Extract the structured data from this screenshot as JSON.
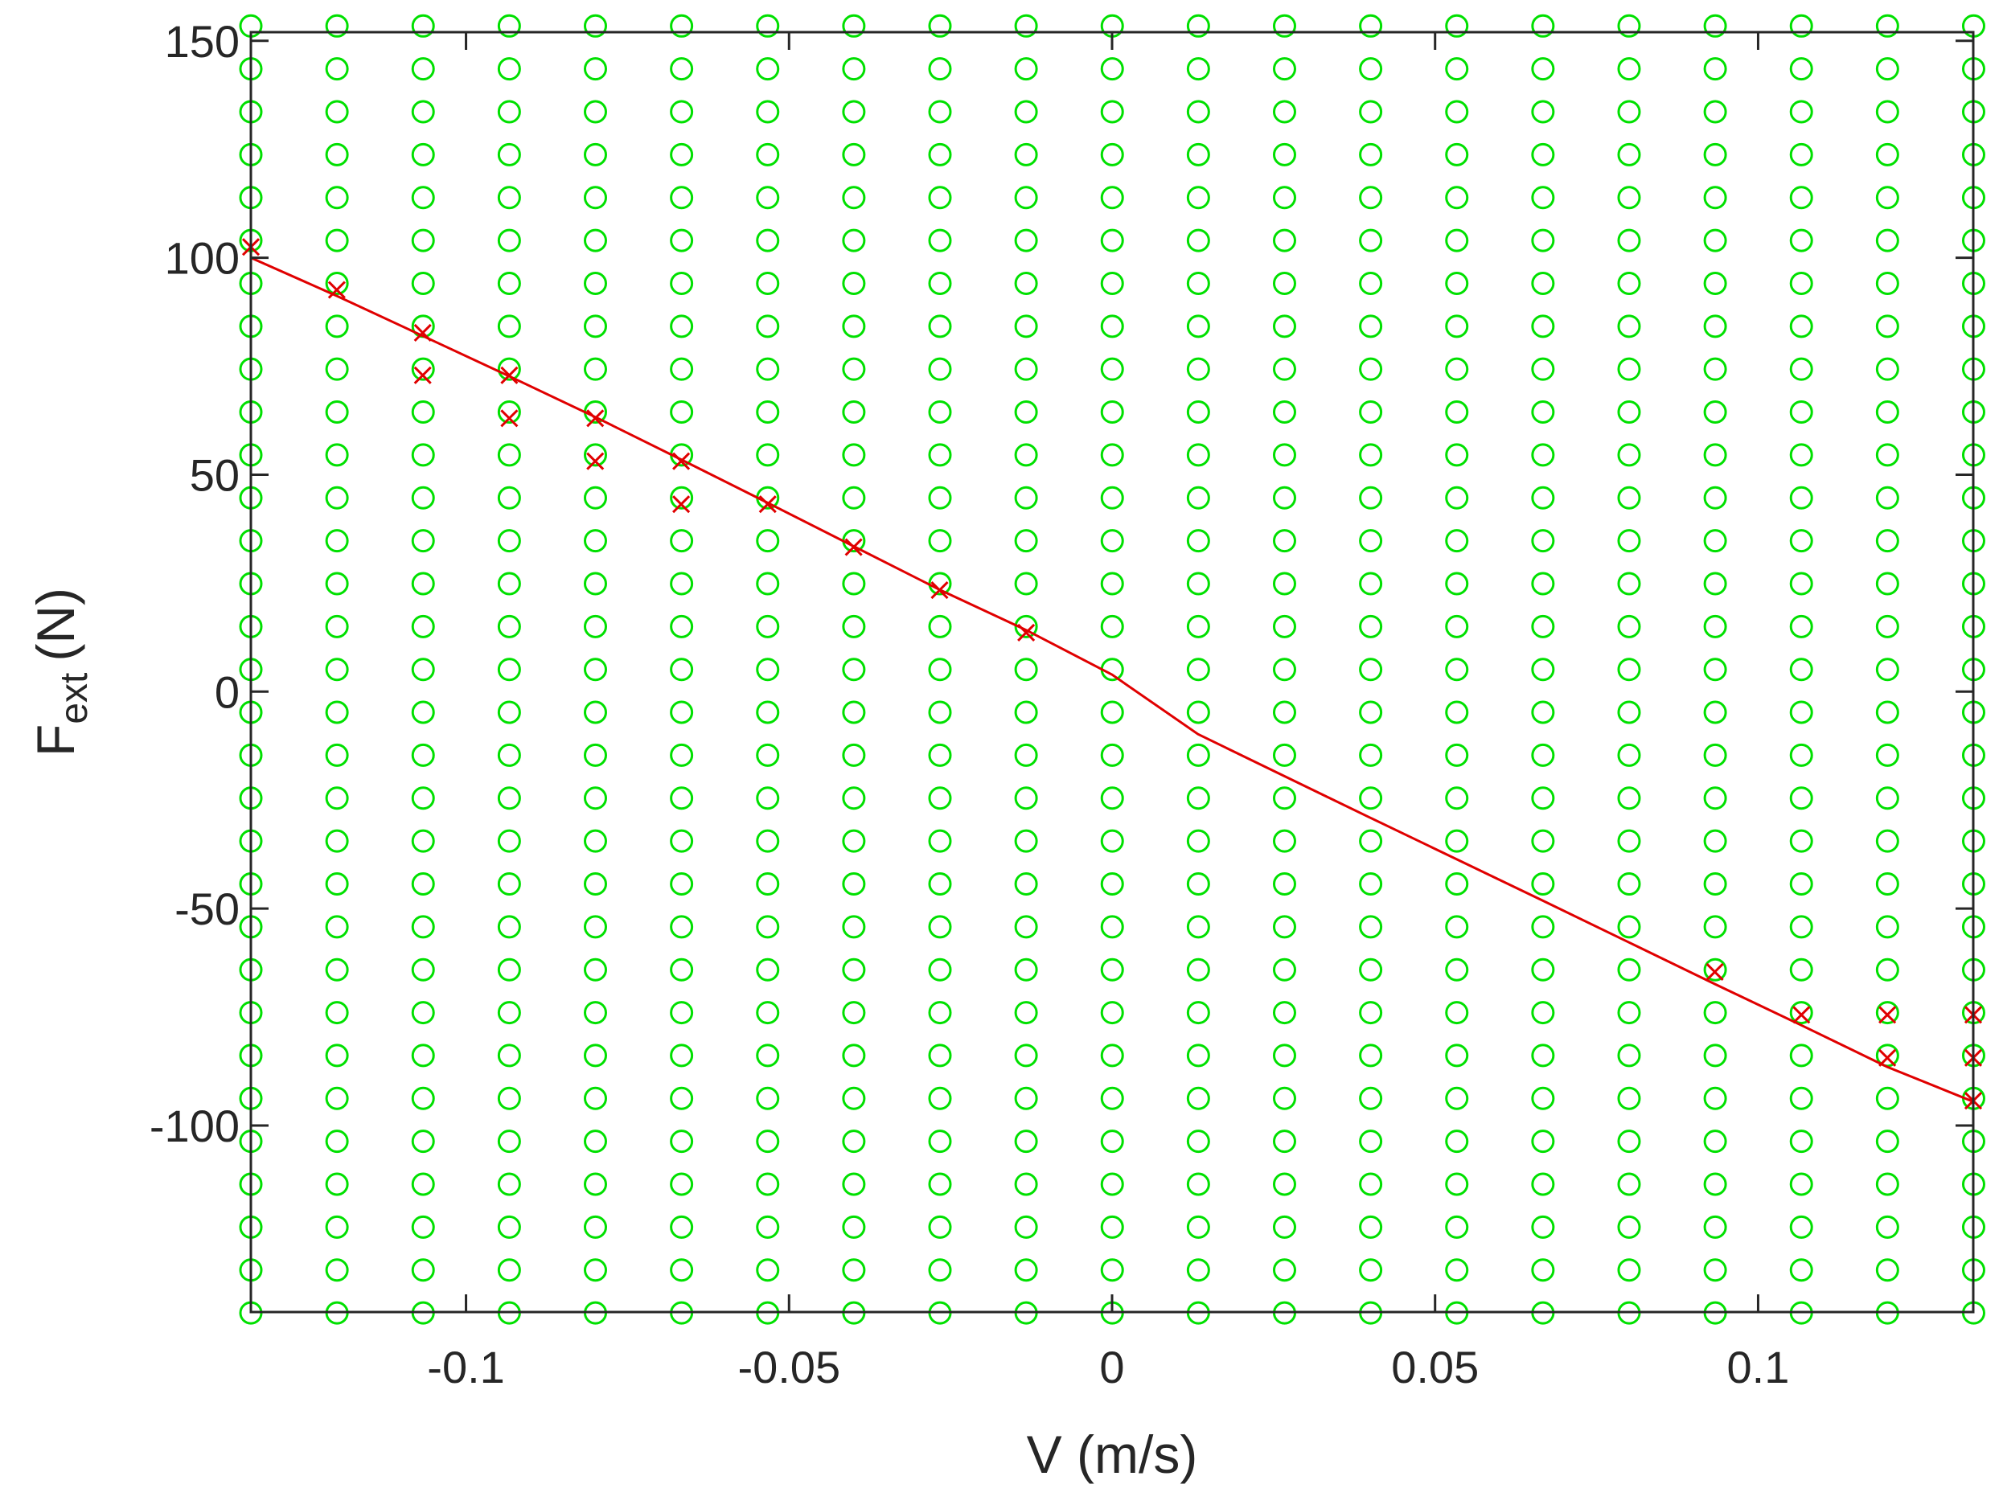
{
  "chart_data": {
    "type": "scatter",
    "title": "",
    "xlabel": "V (m/s)",
    "ylabel": {
      "main": "F",
      "subscript": "ext",
      "unit": "(N)"
    },
    "xlim": [
      -0.1333,
      0.1333
    ],
    "ylim": [
      -143,
      152
    ],
    "x_ticks": [
      -0.1,
      -0.05,
      0,
      0.05,
      0.1
    ],
    "x_tick_labels": [
      "-0.1",
      "-0.05",
      "0",
      "0.05",
      "0.1"
    ],
    "y_ticks": [
      -100,
      -50,
      0,
      50,
      100,
      150
    ],
    "y_tick_labels": [
      "-100",
      "-50",
      "0",
      "50",
      "100",
      "150"
    ],
    "grid": false,
    "colors": {
      "circles": "#00e000",
      "crosses": "#e00000",
      "line": "#e00000",
      "axes": "#262626"
    },
    "series": [
      {
        "marker": "circle",
        "grid_points": {
          "x_start": -0.1333,
          "x_step": 0.013333,
          "x_count": 21,
          "y_start": -143.2,
          "y_step": 9.8875,
          "y_count": 31
        }
      },
      {
        "marker": "cross",
        "points": [
          [
            -0.1333,
            102.5
          ],
          [
            -0.12,
            92.6
          ],
          [
            -0.1067,
            82.7
          ],
          [
            -0.1067,
            72.9
          ],
          [
            -0.0933,
            72.9
          ],
          [
            -0.0933,
            63.0
          ],
          [
            -0.08,
            63.0
          ],
          [
            -0.08,
            53.1
          ],
          [
            -0.0667,
            53.1
          ],
          [
            -0.0667,
            43.2
          ],
          [
            -0.0533,
            43.2
          ],
          [
            -0.04,
            33.3
          ],
          [
            -0.0267,
            23.4
          ],
          [
            -0.0133,
            13.6
          ],
          [
            0.0933,
            -64.6
          ],
          [
            0.1067,
            -74.5
          ],
          [
            0.12,
            -74.5
          ],
          [
            0.12,
            -84.4
          ],
          [
            0.1333,
            -74.5
          ],
          [
            0.1333,
            -84.4
          ],
          [
            0.1333,
            -94.3
          ]
        ]
      },
      {
        "marker": "line",
        "x": [
          -0.1333,
          -0.12,
          -0.1067,
          -0.0933,
          -0.08,
          -0.0667,
          -0.0533,
          -0.04,
          -0.0267,
          -0.0133,
          0,
          0.0133,
          0.0267,
          0.04,
          0.0533,
          0.0667,
          0.08,
          0.0933,
          0.1067,
          0.12,
          0.1333
        ],
        "y": [
          100,
          91.2,
          82.0,
          72.7,
          63.3,
          53.5,
          43.5,
          33.5,
          23.5,
          14.2,
          3.9,
          -9.8,
          -19.5,
          -29.1,
          -38.6,
          -48.2,
          -57.8,
          -67.4,
          -76.9,
          -86.5,
          -94.5
        ]
      }
    ]
  }
}
